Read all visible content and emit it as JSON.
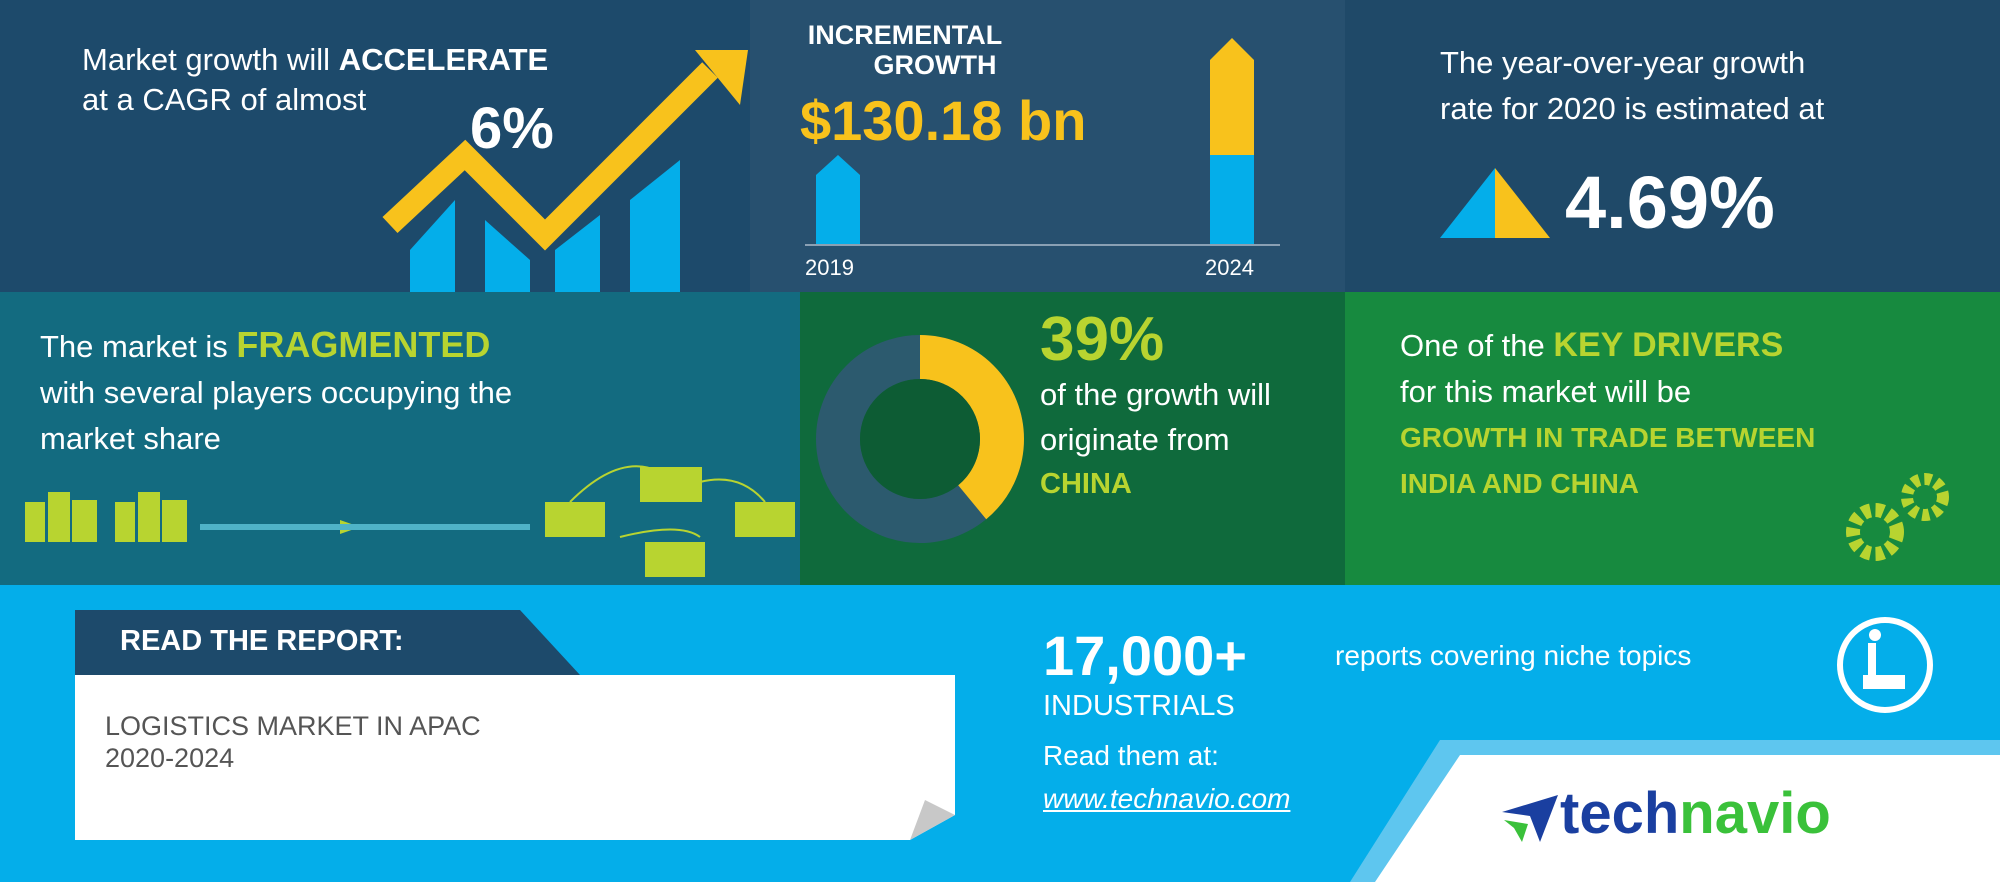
{
  "colors": {
    "navy": "#1d4a6b",
    "navy2": "#27506f",
    "teal": "#136b80",
    "green": "#0f6a3c",
    "green2": "#178a3f",
    "blue": "#04aeea",
    "yellow": "#f8c21c",
    "lime": "#b8d430"
  },
  "cagr": {
    "line1_pre": "Market growth will ",
    "line1_bold": "ACCELERATE",
    "line2": "at a CAGR of almost",
    "value": "6%"
  },
  "incremental": {
    "title1": "INCREMENTAL",
    "title2": "GROWTH",
    "value": "$130.18 bn",
    "year_start": "2019",
    "year_end": "2024"
  },
  "yoy": {
    "line1": "The year-over-year growth",
    "line2": "rate for 2020 is estimated at",
    "value": "4.69%"
  },
  "fragmented": {
    "pre": "The market is ",
    "bold": "FRAGMENTED",
    "line2": "with several players occupying the",
    "line3": "market share"
  },
  "region": {
    "value": "39%",
    "line1": "of the growth will",
    "line2": "originate from",
    "country": "CHINA",
    "share_percent": 39
  },
  "drivers": {
    "pre": "One of the ",
    "bold": "KEY DRIVERS",
    "line2": "for this market will be",
    "d1": "GROWTH IN TRADE BETWEEN",
    "d2": "INDIA AND CHINA"
  },
  "report": {
    "label": "READ THE REPORT:",
    "title": "LOGISTICS MARKET IN APAC",
    "years": "2020-2024"
  },
  "promo": {
    "count": "17,000+",
    "count_text": "reports covering niche topics",
    "category": "INDUSTRIALS",
    "read": "Read them at:",
    "url": "www.technavio.com"
  },
  "logo": {
    "part1": "tech",
    "part2": "navio"
  }
}
